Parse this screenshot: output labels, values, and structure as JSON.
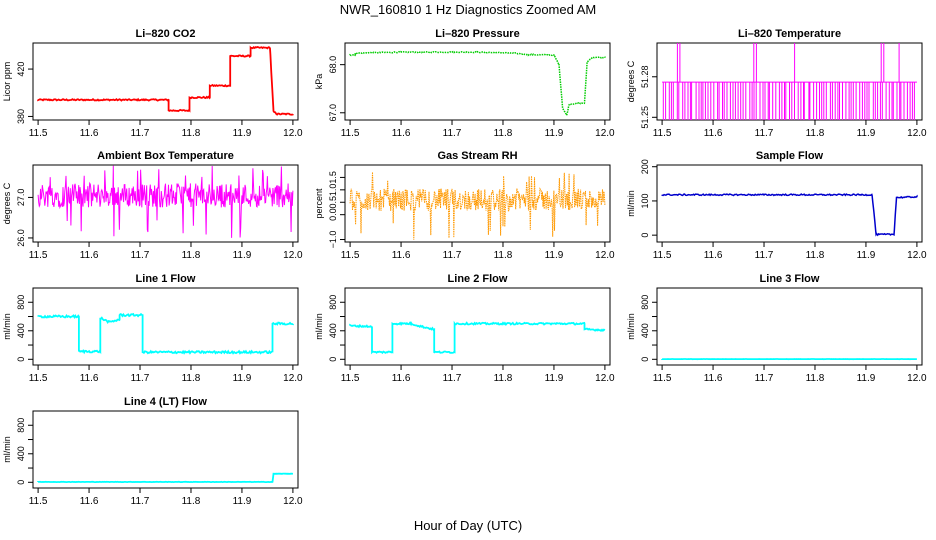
{
  "title": "NWR_160810  1 Hz Diagnostics Zoomed AM",
  "xlabel": "Hour of Day (UTC)",
  "chart_data": [
    {
      "type": "line",
      "title": "Li–820 CO2",
      "ylabel": "Licor ppm",
      "color": "#ff0000",
      "style": "line",
      "x_ticks": [
        "11.5",
        "11.6",
        "11.7",
        "11.8",
        "11.9",
        "12.0"
      ],
      "xlim": [
        11.49,
        12.01
      ],
      "y_ticks": [
        380,
        420
      ],
      "y_tick_labels": [
        "380",
        "420"
      ],
      "ylim": [
        377,
        442
      ],
      "series": [
        {
          "x": [
            11.5,
            11.756,
            11.756,
            11.797,
            11.797,
            11.837,
            11.837,
            11.877,
            11.877,
            11.917,
            11.917,
            11.955,
            11.962,
            11.969,
            12.0
          ],
          "y": [
            394,
            394,
            385,
            385,
            396,
            396,
            406,
            406,
            431,
            431,
            438,
            438,
            384,
            382,
            382
          ]
        }
      ],
      "noise": 0.6
    },
    {
      "type": "line",
      "title": "Li–820 Pressure",
      "ylabel": "kPa",
      "color": "#00cc00",
      "style": "dotted",
      "x_ticks": [
        "11.5",
        "11.6",
        "11.7",
        "11.8",
        "11.9",
        "12.0"
      ],
      "xlim": [
        11.49,
        12.01
      ],
      "y_ticks": [
        67.0,
        68.0
      ],
      "y_tick_labels": [
        "67.0",
        "68.0"
      ],
      "ylim": [
        66.85,
        68.45
      ],
      "series": [
        {
          "x": [
            11.5,
            11.51,
            11.51,
            11.6,
            11.75,
            11.82,
            11.85,
            11.9,
            11.91,
            11.917,
            11.925,
            11.93,
            11.95,
            11.96,
            11.965,
            11.975,
            12.0
          ],
          "y": [
            68.2,
            68.2,
            68.24,
            68.26,
            68.26,
            68.24,
            68.21,
            68.2,
            68.0,
            67.1,
            66.95,
            67.18,
            67.2,
            67.2,
            68.05,
            68.15,
            68.15
          ]
        }
      ],
      "noise": 0.01
    },
    {
      "type": "line",
      "title": "Li–820 Temperature",
      "ylabel": "degrees C",
      "color": "#ff00ff",
      "style": "spiky-temp",
      "x_ticks": [
        "11.5",
        "11.6",
        "11.7",
        "11.8",
        "11.9",
        "12.0"
      ],
      "xlim": [
        11.49,
        12.01
      ],
      "y_ticks": [
        51.25,
        51.28
      ],
      "y_tick_labels": [
        "51.25",
        "51.28"
      ],
      "ylim": [
        51.248,
        51.305
      ],
      "series": [
        {
          "x": [
            11.5,
            12.0
          ],
          "y": [
            51.276,
            51.276
          ]
        }
      ],
      "noise": 0
    },
    {
      "type": "line",
      "title": "Ambient Box Temperature",
      "ylabel": "degrees C",
      "color": "#ff00ff",
      "style": "band",
      "x_ticks": [
        "11.5",
        "11.6",
        "11.7",
        "11.8",
        "11.9",
        "12.0"
      ],
      "xlim": [
        11.49,
        12.01
      ],
      "y_ticks": [
        26.0,
        27.0
      ],
      "y_tick_labels": [
        "26.0",
        "27.0"
      ],
      "ylim": [
        25.9,
        27.8
      ],
      "series": [
        {
          "x": [
            11.5,
            12.0
          ],
          "y": [
            27.05,
            27.05
          ]
        }
      ],
      "noise": 0.3
    },
    {
      "type": "line",
      "title": "Gas Stream RH",
      "ylabel": "percent",
      "color": "#ff9900",
      "style": "band",
      "x_ticks": [
        "11.5",
        "11.6",
        "11.7",
        "11.8",
        "11.9",
        "12.0"
      ],
      "xlim": [
        11.49,
        12.01
      ],
      "y_ticks": [
        -1.0,
        0.0,
        0.5,
        1.0,
        1.5
      ],
      "y_tick_labels": [
        "−1.0",
        "0.0",
        "0.5",
        "1.0",
        "1.5"
      ],
      "ylim": [
        -1.1,
        2.0
      ],
      "series": [
        {
          "x": [
            11.5,
            12.0
          ],
          "y": [
            0.6,
            0.6
          ]
        }
      ],
      "noise": 0.45
    },
    {
      "type": "line",
      "title": "Sample Flow",
      "ylabel": "ml/min",
      "color": "#0000cc",
      "style": "line",
      "x_ticks": [
        "11.5",
        "11.6",
        "11.7",
        "11.8",
        "11.9",
        "12.0"
      ],
      "xlim": [
        11.49,
        12.01
      ],
      "y_ticks": [
        0,
        100,
        200
      ],
      "y_tick_labels": [
        "0",
        "100",
        "200"
      ],
      "ylim": [
        -20,
        205
      ],
      "series": [
        {
          "x": [
            11.5,
            11.912,
            11.92,
            11.955,
            11.96,
            12.0
          ],
          "y": [
            118,
            118,
            2,
            2,
            110,
            112
          ]
        }
      ],
      "noise": 2
    },
    {
      "type": "line",
      "title": "Line 1 Flow",
      "ylabel": "ml/min",
      "color": "#00ffff",
      "style": "line",
      "x_ticks": [
        "11.5",
        "11.6",
        "11.7",
        "11.8",
        "11.9",
        "12.0"
      ],
      "xlim": [
        11.49,
        12.01
      ],
      "y_ticks": [
        0,
        200,
        400,
        600,
        800
      ],
      "y_tick_labels": [
        "0",
        "400",
        "800"
      ],
      "ylim": [
        -80,
        1000
      ],
      "series": [
        {
          "x": [
            11.5,
            11.58,
            11.58,
            11.622,
            11.622,
            11.64,
            11.66,
            11.66,
            11.705,
            11.705,
            11.96,
            11.96,
            12.0
          ],
          "y": [
            600,
            600,
            110,
            110,
            580,
            520,
            560,
            620,
            620,
            100,
            100,
            500,
            500
          ]
        }
      ],
      "noise": 15
    },
    {
      "type": "line",
      "title": "Line 2 Flow",
      "ylabel": "ml/min",
      "color": "#00ffff",
      "style": "line",
      "x_ticks": [
        "11.5",
        "11.6",
        "11.7",
        "11.8",
        "11.9",
        "12.0"
      ],
      "xlim": [
        11.49,
        12.01
      ],
      "y_ticks": [
        0,
        200,
        400,
        600,
        800
      ],
      "y_tick_labels": [
        "0",
        "400",
        "800"
      ],
      "ylim": [
        -80,
        1000
      ],
      "series": [
        {
          "x": [
            11.5,
            11.543,
            11.543,
            11.583,
            11.583,
            11.62,
            11.64,
            11.665,
            11.665,
            11.705,
            11.705,
            11.96,
            11.96,
            12.0
          ],
          "y": [
            470,
            460,
            100,
            100,
            500,
            500,
            460,
            420,
            100,
            100,
            500,
            500,
            420,
            410
          ]
        }
      ],
      "noise": 12
    },
    {
      "type": "line",
      "title": "Line 3 Flow",
      "ylabel": "ml/min",
      "color": "#00ffff",
      "style": "line",
      "x_ticks": [
        "11.5",
        "11.6",
        "11.7",
        "11.8",
        "11.9",
        "12.0"
      ],
      "xlim": [
        11.49,
        12.01
      ],
      "y_ticks": [
        0,
        200,
        400,
        600,
        800
      ],
      "y_tick_labels": [
        "0",
        "400",
        "800"
      ],
      "ylim": [
        -80,
        1000
      ],
      "series": [
        {
          "x": [
            11.5,
            12.0
          ],
          "y": [
            3,
            3
          ]
        }
      ],
      "noise": 1
    },
    {
      "type": "line",
      "title": "Line 4 (LT) Flow",
      "ylabel": "ml/min",
      "color": "#00ffff",
      "style": "line",
      "x_ticks": [
        "11.5",
        "11.6",
        "11.7",
        "11.8",
        "11.9",
        "12.0"
      ],
      "xlim": [
        11.49,
        12.01
      ],
      "y_ticks": [
        0,
        200,
        400,
        600,
        800
      ],
      "y_tick_labels": [
        "0",
        "400",
        "800"
      ],
      "ylim": [
        -80,
        1000
      ],
      "series": [
        {
          "x": [
            11.5,
            11.96,
            11.962,
            12.0
          ],
          "y": [
            5,
            5,
            120,
            120
          ]
        }
      ],
      "noise": 2
    }
  ]
}
